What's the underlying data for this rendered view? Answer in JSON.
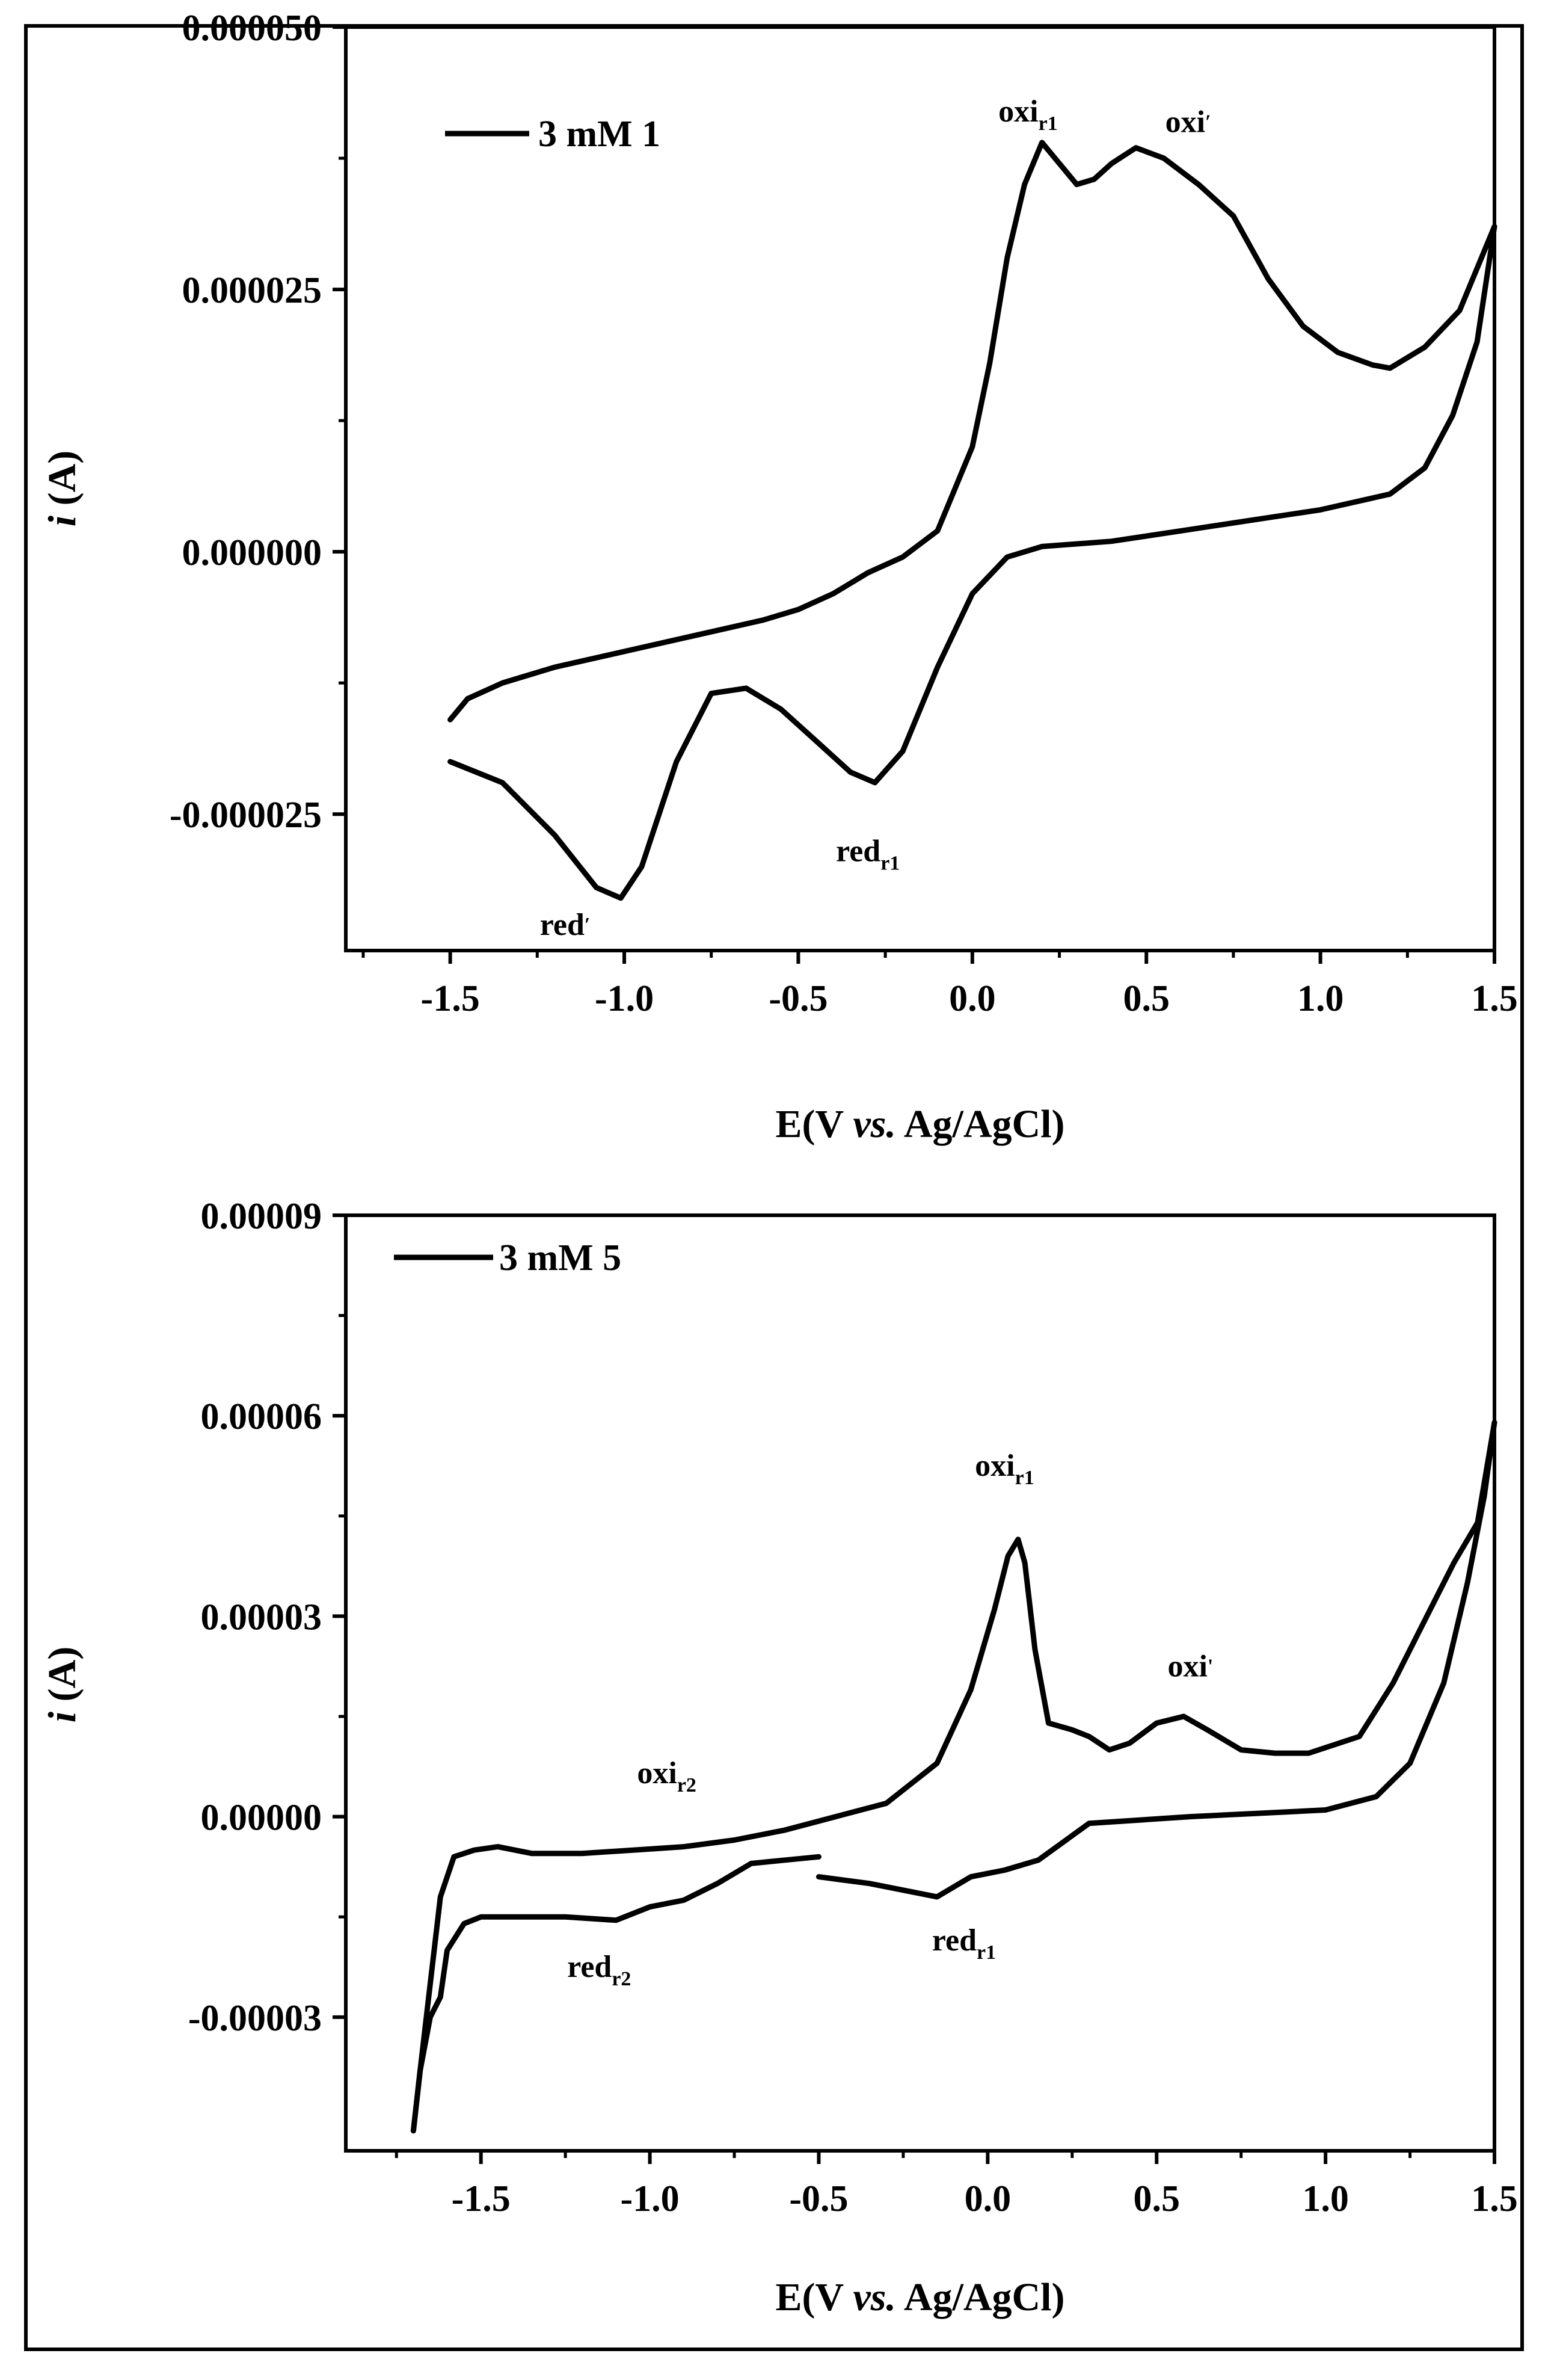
{
  "chart_data": [
    {
      "type": "line",
      "legend": "3 mM 1",
      "legend_position": "top-left",
      "xlabel": "E(V vs. Ag/AgCl)",
      "ylabel": "i (A)",
      "xlim": [
        -1.8,
        1.5
      ],
      "ylim": [
        -3.8e-05,
        5e-05
      ],
      "xticks": [
        -1.5,
        -1.0,
        -0.5,
        0.0,
        0.5,
        1.0,
        1.5
      ],
      "xtick_labels": [
        "-1.5",
        "-1.0",
        "-0.5",
        "0.0",
        "0.5",
        "1.0",
        "1.5"
      ],
      "yticks": [
        -2.5e-05,
        0.0,
        2.5e-05,
        5e-05
      ],
      "ytick_labels": [
        "-0.000025",
        "0.000000",
        "0.000025",
        "0.000050"
      ],
      "series": [
        {
          "name": "3 mM 1",
          "points": [
            [
              -1.5,
              -1.6e-05
            ],
            [
              -1.45,
              -1.4e-05
            ],
            [
              -1.35,
              -1.25e-05
            ],
            [
              -1.2,
              -1.1e-05
            ],
            [
              -1.0,
              -9.5e-06
            ],
            [
              -0.8,
              -8e-06
            ],
            [
              -0.6,
              -6.5e-06
            ],
            [
              -0.5,
              -5.5e-06
            ],
            [
              -0.4,
              -4e-06
            ],
            [
              -0.3,
              -2e-06
            ],
            [
              -0.2,
              -5e-07
            ],
            [
              -0.1,
              2e-06
            ],
            [
              0.0,
              1e-05
            ],
            [
              0.05,
              1.8e-05
            ],
            [
              0.1,
              2.8e-05
            ],
            [
              0.15,
              3.5e-05
            ],
            [
              0.2,
              3.9e-05
            ],
            [
              0.25,
              3.7e-05
            ],
            [
              0.3,
              3.5e-05
            ],
            [
              0.35,
              3.55e-05
            ],
            [
              0.4,
              3.7e-05
            ],
            [
              0.47,
              3.85e-05
            ],
            [
              0.55,
              3.75e-05
            ],
            [
              0.65,
              3.5e-05
            ],
            [
              0.75,
              3.2e-05
            ],
            [
              0.85,
              2.6e-05
            ],
            [
              0.95,
              2.15e-05
            ],
            [
              1.05,
              1.9e-05
            ],
            [
              1.15,
              1.78e-05
            ],
            [
              1.2,
              1.75e-05
            ],
            [
              1.3,
              1.95e-05
            ],
            [
              1.4,
              2.3e-05
            ],
            [
              1.5,
              3.1e-05
            ],
            [
              1.45,
              2e-05
            ],
            [
              1.38,
              1.3e-05
            ],
            [
              1.3,
              8e-06
            ],
            [
              1.2,
              5.5e-06
            ],
            [
              1.0,
              4e-06
            ],
            [
              0.8,
              3e-06
            ],
            [
              0.6,
              2e-06
            ],
            [
              0.4,
              1e-06
            ],
            [
              0.2,
              5e-07
            ],
            [
              0.1,
              -5e-07
            ],
            [
              0.0,
              -4e-06
            ],
            [
              -0.1,
              -1.1e-05
            ],
            [
              -0.2,
              -1.9e-05
            ],
            [
              -0.28,
              -2.2e-05
            ],
            [
              -0.35,
              -2.1e-05
            ],
            [
              -0.45,
              -1.8e-05
            ],
            [
              -0.55,
              -1.5e-05
            ],
            [
              -0.65,
              -1.3e-05
            ],
            [
              -0.75,
              -1.35e-05
            ],
            [
              -0.85,
              -2e-05
            ],
            [
              -0.95,
              -3e-05
            ],
            [
              -1.01,
              -3.3e-05
            ],
            [
              -1.08,
              -3.2e-05
            ],
            [
              -1.2,
              -2.7e-05
            ],
            [
              -1.35,
              -2.2e-05
            ],
            [
              -1.5,
              -2e-05
            ]
          ]
        }
      ],
      "annotations": [
        {
          "base": "oxi",
          "sub": "r1",
          "x": 0.16,
          "y": 4.1e-05
        },
        {
          "base": "oxi",
          "sub": "′",
          "x": 0.62,
          "y": 4e-05
        },
        {
          "base": "red",
          "sub": "r1",
          "x": -0.3,
          "y": -2.95e-05
        },
        {
          "base": "red",
          "sub": "′",
          "x": -1.17,
          "y": -3.65e-05
        }
      ]
    },
    {
      "type": "line",
      "legend": "3 mM 5",
      "legend_position": "top-left",
      "xlabel": "E(V vs. Ag/AgCl)",
      "ylabel": "i (A)",
      "xlim": [
        -1.9,
        1.5
      ],
      "ylim": [
        -5e-05,
        9e-05
      ],
      "xticks": [
        -1.5,
        -1.0,
        -0.5,
        0.0,
        0.5,
        1.0,
        1.5
      ],
      "xtick_labels": [
        "-1.5",
        "-1.0",
        "-0.5",
        "0.0",
        "0.5",
        "1.0",
        "1.5"
      ],
      "yticks": [
        -3e-05,
        0.0,
        3e-05,
        6e-05,
        9e-05
      ],
      "ytick_labels": [
        "-0.00003",
        "0.00000",
        "0.00003",
        "0.00006",
        "0.00009"
      ],
      "series": [
        {
          "name": "3 mM 5",
          "points": [
            [
              -1.7,
              -4.7e-05
            ],
            [
              -1.68,
              -3.8e-05
            ],
            [
              -1.65,
              -3e-05
            ],
            [
              -1.62,
              -2.7e-05
            ],
            [
              -1.6,
              -2e-05
            ],
            [
              -1.55,
              -1.6e-05
            ],
            [
              -1.5,
              -1.5e-05
            ],
            [
              -1.4,
              -1.5e-05
            ],
            [
              -1.25,
              -1.5e-05
            ],
            [
              -1.1,
              -1.55e-05
            ],
            [
              -1.0,
              -1.35e-05
            ],
            [
              -0.9,
              -1.25e-05
            ],
            [
              -0.8,
              -1e-05
            ],
            [
              -0.7,
              -7e-06
            ],
            [
              -0.6,
              -6.5e-06
            ],
            [
              -0.5,
              -6e-06
            ]
          ]
        },
        {
          "name": "3 mM 5 (segment 2)",
          "points": [
            [
              -0.5,
              -9e-06
            ],
            [
              -0.35,
              -1e-05
            ],
            [
              -0.25,
              -1.1e-05
            ],
            [
              -0.15,
              -1.2e-05
            ],
            [
              -0.05,
              -9e-06
            ],
            [
              0.05,
              -8e-06
            ],
            [
              0.15,
              -6.5e-06
            ],
            [
              0.3,
              -1e-06
            ],
            [
              0.45,
              -5e-07
            ],
            [
              0.6,
              0.0
            ],
            [
              0.8,
              5e-07
            ],
            [
              1.0,
              1e-06
            ],
            [
              1.15,
              3e-06
            ],
            [
              1.25,
              8e-06
            ],
            [
              1.35,
              2e-05
            ],
            [
              1.42,
              3.5e-05
            ],
            [
              1.47,
              4.8e-05
            ],
            [
              1.5,
              5.9e-05
            ],
            [
              1.45,
              4.4e-05
            ],
            [
              1.38,
              3.8e-05
            ],
            [
              1.3,
              3e-05
            ],
            [
              1.2,
              2e-05
            ],
            [
              1.1,
              1.2e-05
            ],
            [
              0.95,
              9.5e-06
            ],
            [
              0.85,
              9.5e-06
            ],
            [
              0.75,
              1e-05
            ],
            [
              0.65,
              1.3e-05
            ],
            [
              0.58,
              1.5e-05
            ],
            [
              0.5,
              1.4e-05
            ],
            [
              0.42,
              1.1e-05
            ],
            [
              0.36,
              1e-05
            ],
            [
              0.3,
              1.2e-05
            ],
            [
              0.25,
              1.3e-05
            ],
            [
              0.18,
              1.4e-05
            ],
            [
              0.14,
              2.5e-05
            ],
            [
              0.11,
              3.8e-05
            ],
            [
              0.09,
              4.15e-05
            ],
            [
              0.06,
              3.9e-05
            ],
            [
              0.02,
              3.1e-05
            ],
            [
              -0.05,
              1.9e-05
            ],
            [
              -0.15,
              8e-06
            ],
            [
              -0.3,
              2e-06
            ],
            [
              -0.45,
              0.0
            ],
            [
              -0.6,
              -2e-06
            ],
            [
              -0.75,
              -3.5e-06
            ],
            [
              -0.9,
              -4.5e-06
            ],
            [
              -1.05,
              -5e-06
            ],
            [
              -1.2,
              -5.5e-06
            ],
            [
              -1.35,
              -5.5e-06
            ],
            [
              -1.45,
              -4.5e-06
            ],
            [
              -1.52,
              -5e-06
            ],
            [
              -1.58,
              -6e-06
            ],
            [
              -1.62,
              -1.2e-05
            ],
            [
              -1.65,
              -2.5e-05
            ],
            [
              -1.68,
              -3.8e-05
            ],
            [
              -1.7,
              -4.7e-05
            ]
          ]
        }
      ],
      "annotations": [
        {
          "base": "oxi",
          "sub": "r1",
          "x": 0.05,
          "y": 5.1e-05
        },
        {
          "base": "oxi",
          "sub": "'",
          "x": 0.6,
          "y": 2.1e-05
        },
        {
          "base": "oxi",
          "sub": "r2",
          "x": -0.95,
          "y": 5e-06
        },
        {
          "base": "red",
          "sub": "r2",
          "x": -1.15,
          "y": -2.4e-05
        },
        {
          "base": "red",
          "sub": "r1",
          "x": -0.07,
          "y": -2e-05
        }
      ]
    }
  ]
}
